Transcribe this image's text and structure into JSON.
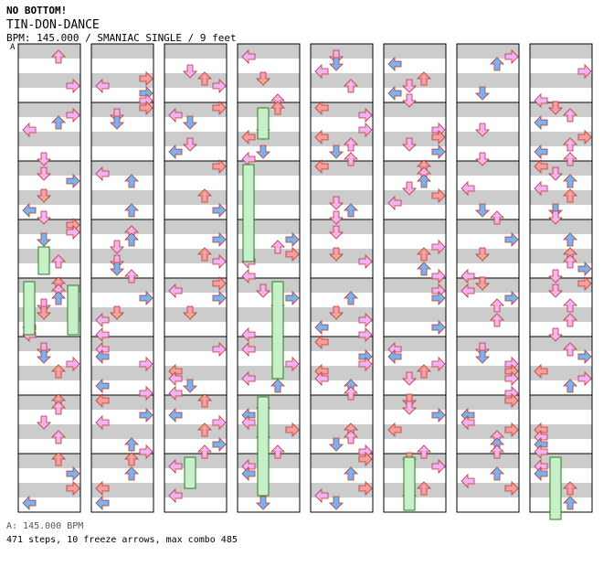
{
  "header": {
    "game_title": "NO BOTTOM!",
    "song_title": "TIN-DON-DANCE",
    "info": "BPM: 145.000 / SMANIAC SINGLE / 9 feet"
  },
  "section_mark": "A",
  "footer": {
    "bpm_line": "A: 145.000 BPM",
    "stats_line": "471 steps, 10 freeze arrows, max combo 485"
  },
  "legend_colors": {
    "quarter_note": "#f4a0a0",
    "eighth_note": "#78b4ee",
    "sixteenth_note": "#f0b4f0",
    "freeze_fill": "#c8f0c8",
    "stripe": "#cccccc"
  },
  "chart_data": {
    "type": "step-chart",
    "lanes": [
      "left",
      "down",
      "up",
      "right"
    ],
    "columns": 8,
    "measures_per_column": 8,
    "freeze_arrow_count": 10,
    "step_count": 471,
    "max_combo": 485,
    "bpm": 145.0
  }
}
